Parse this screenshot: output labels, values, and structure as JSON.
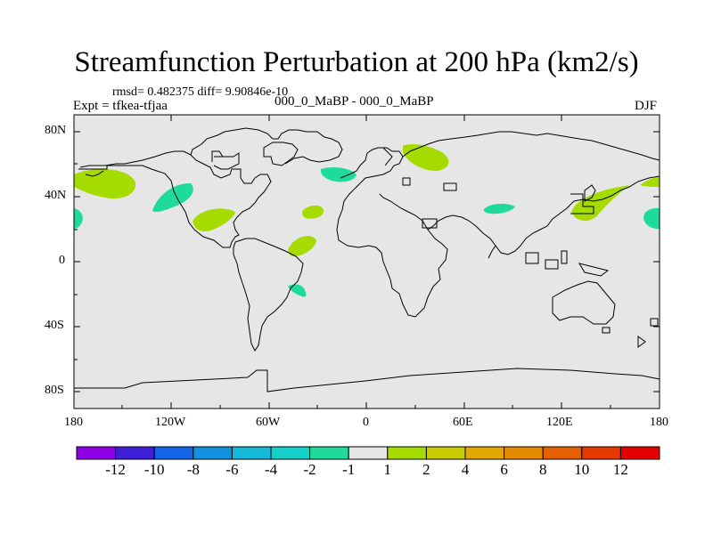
{
  "title": "Streamfunction Perturbation at 200 hPa (km2/s)",
  "stats": "rmsd= 0.482375 diff= 9.90846e-10",
  "comparison": "000_0_MaBP - 000_0_MaBP",
  "experiment": "Expt = tfkea-tfjaa",
  "season": "DJF",
  "colors": {
    "map_background": "#e6e6e6",
    "positive_anomaly": "#a6db00",
    "negative_anomaly": "#1fdb9b",
    "coastline": "#000000"
  },
  "axes": {
    "y_ticks": [
      "80N",
      "40N",
      "0",
      "40S",
      "80S"
    ],
    "x_ticks": [
      "180",
      "120W",
      "60W",
      "0",
      "60E",
      "120E",
      "180"
    ]
  },
  "colorbar": {
    "labels": [
      "-12",
      "-10",
      "-8",
      "-6",
      "-4",
      "-2",
      "-1",
      "1",
      "2",
      "4",
      "6",
      "8",
      "10",
      "12"
    ],
    "colors": [
      "#8f00e6",
      "#3f1ed8",
      "#1466e6",
      "#1292e0",
      "#14b8d8",
      "#14d0c8",
      "#1fdb9b",
      "#e6e6e6",
      "#a6db00",
      "#c8cc00",
      "#e0a800",
      "#e68a00",
      "#e65f00",
      "#e63a00",
      "#e60000"
    ]
  }
}
